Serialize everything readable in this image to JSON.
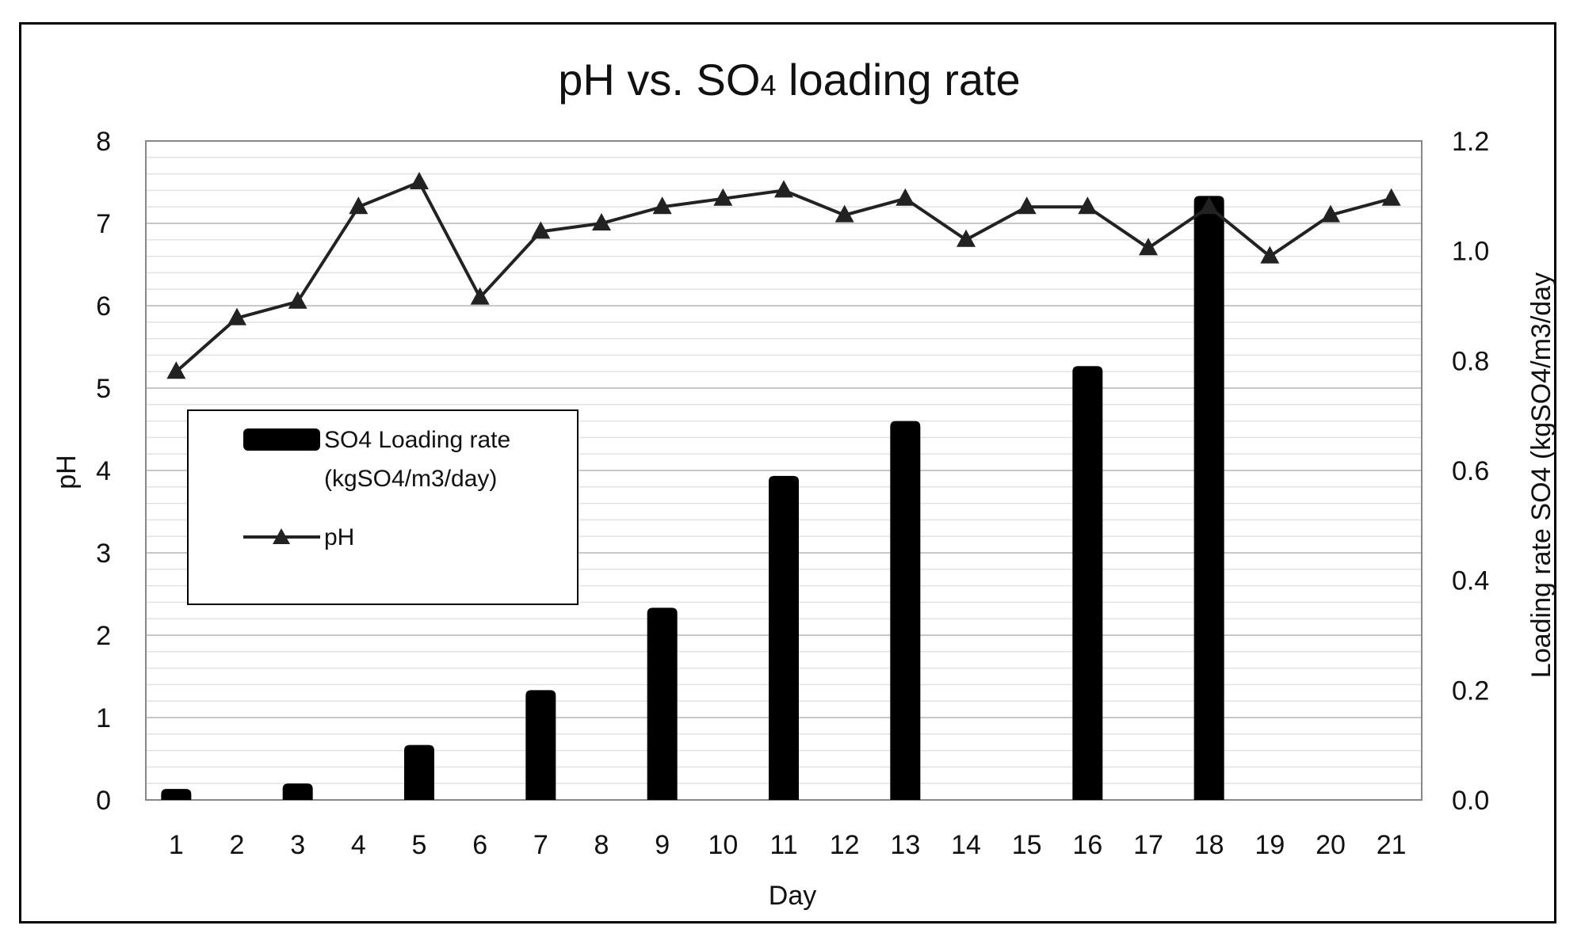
{
  "chart_data": {
    "type": "bar+line",
    "title": "pH vs. SO",
    "title_subscript": "4",
    "title_suffix": " loading rate",
    "xlabel": "Day",
    "ylabel_left": "pH",
    "ylabel_right": "Loading rate SO4 (kgSO4/m3/day",
    "categories": [
      "1",
      "2",
      "3",
      "4",
      "5",
      "6",
      "7",
      "8",
      "9",
      "10",
      "11",
      "12",
      "13",
      "14",
      "15",
      "16",
      "17",
      "18",
      "19",
      "20",
      "21"
    ],
    "ylim_left": [
      0,
      8
    ],
    "yticks_left": [
      "0",
      "1",
      "2",
      "3",
      "4",
      "5",
      "6",
      "7",
      "8"
    ],
    "ylim_right": [
      0,
      1.2
    ],
    "yticks_right": [
      "0.0",
      "0.2",
      "0.4",
      "0.6",
      "0.8",
      "1.0",
      "1.2"
    ],
    "grid": true,
    "series": [
      {
        "name": "SO4 Loading rate (kgSO4/m3/day)",
        "type": "bar",
        "axis": "right",
        "color": "#000000",
        "values": [
          0.02,
          0,
          0.03,
          0,
          0.1,
          0,
          0.2,
          0,
          0.35,
          0,
          0.59,
          0,
          0.69,
          0,
          0,
          0.79,
          0,
          1.1,
          0,
          0,
          0
        ]
      },
      {
        "name": "pH",
        "type": "line",
        "axis": "left",
        "marker": "triangle",
        "color": "#222222",
        "values": [
          5.2,
          5.85,
          6.05,
          7.2,
          7.5,
          6.1,
          6.9,
          7.0,
          7.2,
          7.3,
          7.4,
          7.1,
          7.3,
          6.8,
          7.2,
          7.2,
          6.7,
          7.2,
          6.6,
          7.1,
          7.3
        ]
      }
    ],
    "legend": {
      "position": "inside-left",
      "bar_label_line1": "SO4 Loading rate",
      "bar_label_line2": "(kgSO4/m3/day)",
      "line_label": "pH"
    }
  }
}
